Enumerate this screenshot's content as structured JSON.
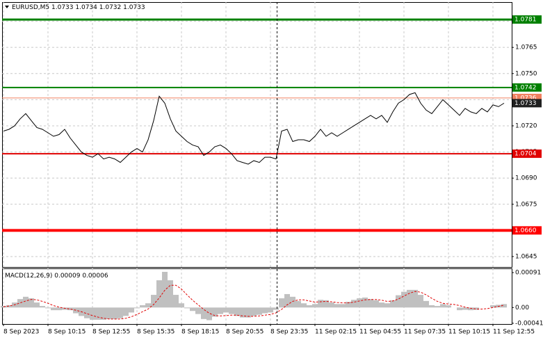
{
  "chart_data": {
    "type": "line",
    "symbol": "EURUSD,M5",
    "ohlc": [
      1.0733,
      1.0734,
      1.0732,
      1.0733
    ],
    "categories": [
      "8 Sep 2023",
      null,
      null,
      null,
      null,
      null,
      null,
      null,
      "8 Sep 10:15",
      null,
      null,
      null,
      null,
      null,
      null,
      null,
      "8 Sep 12:55",
      null,
      null,
      null,
      null,
      null,
      null,
      null,
      "8 Sep 15:35",
      null,
      null,
      null,
      null,
      null,
      null,
      null,
      "8 Sep 18:15",
      null,
      null,
      null,
      null,
      null,
      null,
      null,
      "8 Sep 20:55",
      null,
      null,
      null,
      null,
      null,
      null,
      null,
      "8 Sep 23:35",
      null,
      null,
      null,
      null,
      null,
      null,
      null,
      "11 Sep 02:15",
      null,
      null,
      null,
      null,
      null,
      null,
      null,
      "11 Sep 04:55",
      null,
      null,
      null,
      null,
      null,
      null,
      null,
      "11 Sep 07:35",
      null,
      null,
      null,
      null,
      null,
      null,
      null,
      "11 Sep 10:15",
      null,
      null,
      null,
      null,
      null,
      null,
      null,
      "11 Sep 12:55",
      null,
      null
    ],
    "series": [
      {
        "name": "EURUSD",
        "color": "#000000",
        "values": [
          1.0717,
          1.0718,
          1.072,
          1.0724,
          1.0727,
          1.0723,
          1.0719,
          1.0718,
          1.0716,
          1.0714,
          1.0715,
          1.0718,
          1.0713,
          1.0709,
          1.0705,
          1.0703,
          1.0702,
          1.0704,
          1.0701,
          1.0702,
          1.0701,
          1.0699,
          1.0702,
          1.0705,
          1.0707,
          1.0705,
          1.0712,
          1.0723,
          1.0737,
          1.0733,
          1.0724,
          1.0717,
          1.0714,
          1.0711,
          1.0709,
          1.0708,
          1.0703,
          1.0705,
          1.0708,
          1.0709,
          1.0707,
          1.0704,
          1.07,
          1.0699,
          1.0698,
          1.07,
          1.0699,
          1.0702,
          1.0702,
          1.0701,
          1.0717,
          1.0718,
          1.0711,
          1.0712,
          1.0712,
          1.0711,
          1.0714,
          1.0718,
          1.0714,
          1.0716,
          1.0714,
          1.0716,
          1.0718,
          1.072,
          1.0722,
          1.0724,
          1.0726,
          1.0724,
          1.0726,
          1.0722,
          1.0728,
          1.0733,
          1.0735,
          1.0738,
          1.0739,
          1.0733,
          1.0729,
          1.0727,
          1.0731,
          1.0735,
          1.0732,
          1.0729,
          1.0726,
          1.073,
          1.0728,
          1.0727,
          1.073,
          1.0728,
          1.0732,
          1.0731,
          1.0733
        ]
      }
    ],
    "ylim": [
      1.0639,
      1.0791
    ],
    "yticks": [
      {
        "value": 1.078,
        "label": "1.0780"
      },
      {
        "value": 1.0765,
        "label": "1.0765"
      },
      {
        "value": 1.075,
        "label": "1.0750"
      },
      {
        "value": 1.0735,
        "label": "1.0735"
      },
      {
        "value": 1.072,
        "label": "1.0720"
      },
      {
        "value": 1.0705,
        "label": "1.0705"
      },
      {
        "value": 1.069,
        "label": "1.0690"
      },
      {
        "value": 1.0675,
        "label": "1.0675"
      },
      {
        "value": 1.066,
        "label": "1.0660"
      },
      {
        "value": 1.0645,
        "label": "1.0645"
      }
    ],
    "grid": true,
    "levels": [
      {
        "value": 1.0781,
        "label": "1.0781",
        "color": "#008000"
      },
      {
        "value": 1.0742,
        "label": "1.0742",
        "color": "#008000"
      },
      {
        "value": 1.0736,
        "label": "1.0736",
        "color": "#f08060"
      },
      {
        "value": 1.0733,
        "label": "1.0733",
        "color": "#202020"
      },
      {
        "value": 1.0704,
        "label": "1.0704",
        "color": "#e00000"
      },
      {
        "value": 1.066,
        "label": "1.0660",
        "color": "#ff0000"
      }
    ],
    "macd": {
      "name": "MACD(12,26,9)",
      "current": [
        9e-05,
        6e-05
      ],
      "color": "#c0c0c0",
      "signal_color": "#e00000",
      "values": [
        4e-05,
        6e-05,
        0.00013,
        0.00022,
        0.00028,
        0.00024,
        0.00013,
        4e-05,
        -2e-05,
        -7e-05,
        -7e-05,
        -6e-05,
        -7e-05,
        -0.00015,
        -0.00022,
        -0.00028,
        -0.00032,
        -0.00032,
        -0.00032,
        -0.0003,
        -0.0003,
        -0.00028,
        -0.00022,
        -0.00013,
        -2e-05,
        6e-05,
        0.00011,
        0.00033,
        0.00071,
        0.00093,
        0.00071,
        0.00033,
        0.00011,
        -2e-05,
        -9e-05,
        -0.00017,
        -0.0003,
        -0.00033,
        -0.00024,
        -0.00017,
        -0.00013,
        -0.00017,
        -0.00022,
        -0.00026,
        -0.00026,
        -0.00022,
        -0.00019,
        -0.00015,
        -0.00013,
        -6e-05,
        0.00024,
        0.00035,
        0.00028,
        0.00017,
        0.00011,
        6e-05,
        9e-05,
        0.0002,
        0.00019,
        0.00013,
        9e-05,
        9e-05,
        0.00015,
        0.0002,
        0.00024,
        0.00026,
        0.00022,
        0.00019,
        0.00013,
        0.00011,
        0.00019,
        0.00032,
        0.00041,
        0.00046,
        0.00046,
        0.00033,
        0.00017,
        6e-05,
        4e-05,
        9e-05,
        6e-05,
        0,
        -7e-05,
        -6e-05,
        -7e-05,
        -6e-05,
        0,
        0,
        6e-05,
        7e-05,
        9e-05
      ],
      "signal": [
        2e-05,
        4e-05,
        7e-05,
        0.00012,
        0.00017,
        0.00021,
        0.0002,
        0.00016,
        0.00011,
        5e-05,
        1e-05,
        -2e-05,
        -4e-05,
        -7e-05,
        -0.00011,
        -0.00016,
        -0.00021,
        -0.00025,
        -0.00028,
        -0.0003,
        -0.0003,
        -0.0003,
        -0.00028,
        -0.00024,
        -0.00018,
        -0.00011,
        -4e-05,
        8e-05,
        0.00025,
        0.00045,
        0.00058,
        0.00058,
        0.00048,
        0.00033,
        0.00019,
        7e-05,
        -5e-05,
        -0.00015,
        -0.00021,
        -0.00022,
        -0.00021,
        -0.0002,
        -0.0002,
        -0.00022,
        -0.00023,
        -0.00023,
        -0.00022,
        -0.0002,
        -0.00018,
        -0.00014,
        -5e-05,
        7e-05,
        0.00016,
        0.0002,
        0.0002,
        0.00017,
        0.00014,
        0.00015,
        0.00016,
        0.00015,
        0.00013,
        0.00012,
        0.00012,
        0.00014,
        0.00017,
        0.0002,
        0.00021,
        0.00021,
        0.00019,
        0.00016,
        0.00017,
        0.00022,
        0.0003,
        0.00037,
        0.00042,
        0.0004,
        0.00033,
        0.00024,
        0.00016,
        0.00011,
        9e-05,
        8e-05,
        5e-05,
        1e-05,
        -2e-05,
        -4e-05,
        -4e-05,
        -3e-05,
        0,
        3e-05,
        6e-05
      ],
      "ylim": [
        -0.00043,
        0.00102
      ],
      "yticks": [
        0.00091,
        {
          "value": 0,
          "label": "0.00"
        },
        -0.00041
      ]
    }
  }
}
